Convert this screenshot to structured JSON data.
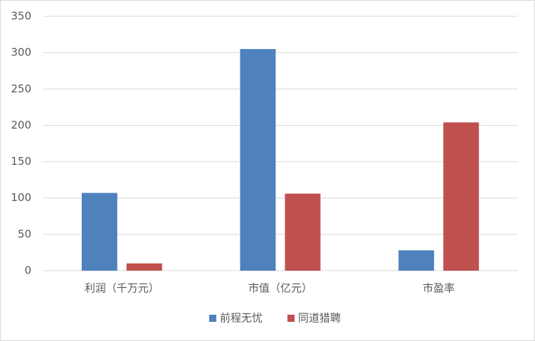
{
  "chart_data": {
    "type": "bar",
    "categories": [
      "利润（千万元）",
      "市值（亿元）",
      "市盈率"
    ],
    "series": [
      {
        "name": "前程无忧",
        "color": "#4f81bd",
        "values": [
          107,
          305,
          28
        ]
      },
      {
        "name": "同道猎聘",
        "color": "#c0504d",
        "values": [
          10,
          106,
          204
        ]
      }
    ],
    "ylim": [
      0,
      350
    ],
    "yticks": [
      0,
      50,
      100,
      150,
      200,
      250,
      300,
      350
    ],
    "grid": true,
    "legend": "bottom"
  }
}
